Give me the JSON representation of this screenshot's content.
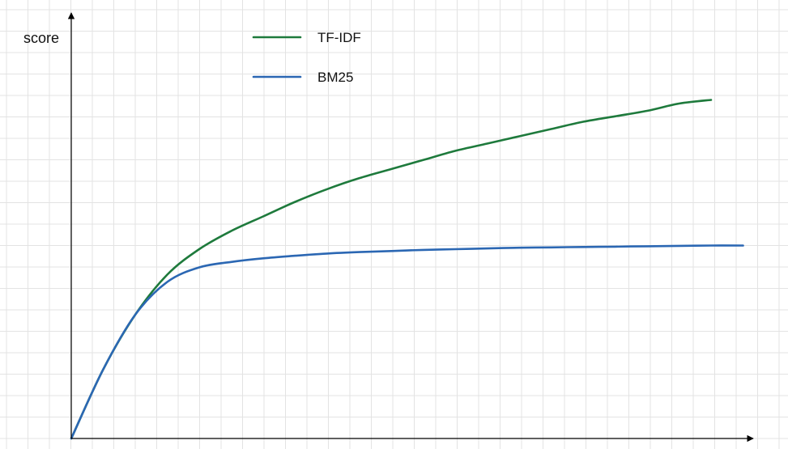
{
  "chart_data": {
    "type": "line",
    "ylabel": "score",
    "xlabel": "",
    "grid": true,
    "legend_position": "top-center",
    "xlim": [
      0,
      10
    ],
    "ylim": [
      0,
      10
    ],
    "series": [
      {
        "name": "TF-IDF",
        "color": "#1e7a3c",
        "x": [
          0,
          0.5,
          1.0,
          1.5,
          2.0,
          2.5,
          3.0,
          3.5,
          4.0,
          4.5,
          5.0,
          5.5,
          6.0,
          6.5,
          7.0,
          7.5,
          8.0,
          8.5,
          9.0,
          9.5,
          10.0
        ],
        "y": [
          0,
          1.9,
          3.4,
          4.5,
          5.2,
          5.7,
          6.1,
          6.5,
          6.85,
          7.15,
          7.4,
          7.65,
          7.9,
          8.1,
          8.3,
          8.5,
          8.7,
          8.85,
          9.0,
          9.2,
          9.3
        ]
      },
      {
        "name": "BM25",
        "color": "#2b67b3",
        "x": [
          0,
          0.5,
          1.0,
          1.5,
          2.0,
          2.5,
          3.0,
          3.5,
          4.0,
          4.5,
          5.0,
          5.5,
          6.0,
          6.5,
          7.0,
          7.5,
          8.0,
          8.5,
          9.0,
          9.5,
          10.0,
          10.5
        ],
        "y": [
          0,
          1.9,
          3.4,
          4.3,
          4.7,
          4.85,
          4.95,
          5.02,
          5.08,
          5.12,
          5.15,
          5.18,
          5.2,
          5.22,
          5.24,
          5.25,
          5.26,
          5.27,
          5.28,
          5.29,
          5.3,
          5.3
        ]
      }
    ]
  }
}
